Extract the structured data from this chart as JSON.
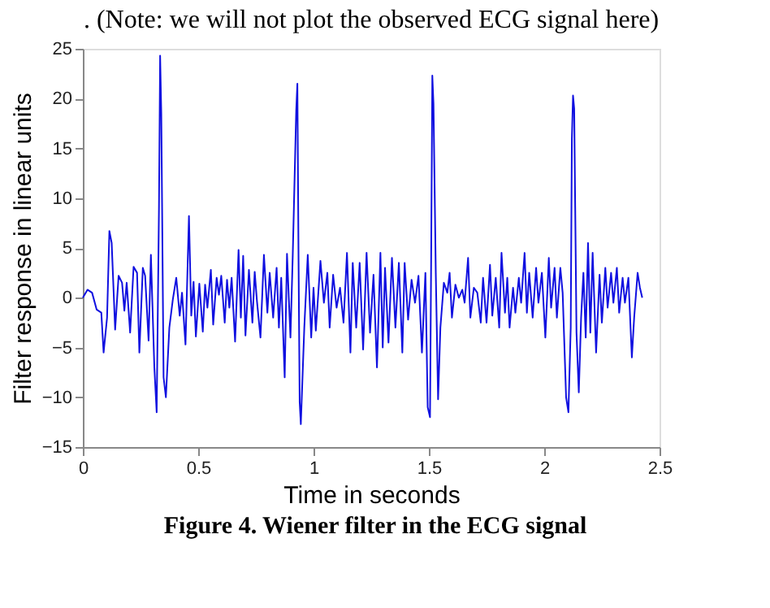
{
  "chart_data": {
    "type": "line",
    "title": ". (Note: we will not plot the observed ECG signal here)",
    "xlabel": "Time in seconds",
    "ylabel": "Filter response in linear units",
    "annotations": [
      "Figure 4.  Wiener filter in the ECG signal"
    ],
    "x": [
      0,
      0.02,
      0.04,
      0.06,
      0.08,
      0.09,
      0.105,
      0.115,
      0.125,
      0.14,
      0.155,
      0.17,
      0.18,
      0.19,
      0.205,
      0.22,
      0.235,
      0.245,
      0.26,
      0.27,
      0.285,
      0.295,
      0.31,
      0.32,
      0.33,
      0.335,
      0.34,
      0.35,
      0.36,
      0.375,
      0.39,
      0.405,
      0.42,
      0.43,
      0.445,
      0.46,
      0.47,
      0.48,
      0.49,
      0.505,
      0.52,
      0.53,
      0.54,
      0.555,
      0.565,
      0.58,
      0.59,
      0.6,
      0.615,
      0.625,
      0.635,
      0.645,
      0.66,
      0.675,
      0.685,
      0.695,
      0.705,
      0.72,
      0.735,
      0.745,
      0.755,
      0.77,
      0.785,
      0.8,
      0.81,
      0.825,
      0.84,
      0.85,
      0.86,
      0.875,
      0.885,
      0.9,
      0.91,
      0.925,
      0.93,
      0.935,
      0.94,
      0.945,
      0.96,
      0.975,
      0.99,
      1.0,
      1.01,
      1.03,
      1.045,
      1.06,
      1.07,
      1.085,
      1.1,
      1.115,
      1.13,
      1.145,
      1.16,
      1.17,
      1.185,
      1.2,
      1.215,
      1.23,
      1.245,
      1.26,
      1.275,
      1.29,
      1.3,
      1.31,
      1.325,
      1.34,
      1.355,
      1.37,
      1.385,
      1.395,
      1.41,
      1.425,
      1.44,
      1.455,
      1.47,
      1.485,
      1.495,
      1.505,
      1.51,
      1.515,
      1.52,
      1.53,
      1.54,
      1.55,
      1.565,
      1.58,
      1.59,
      1.6,
      1.615,
      1.63,
      1.645,
      1.655,
      1.67,
      1.68,
      1.695,
      1.71,
      1.725,
      1.735,
      1.75,
      1.765,
      1.775,
      1.79,
      1.805,
      1.815,
      1.83,
      1.84,
      1.85,
      1.865,
      1.875,
      1.89,
      1.9,
      1.915,
      1.925,
      1.935,
      1.95,
      1.965,
      1.975,
      1.99,
      2.005,
      2.02,
      2.03,
      2.045,
      2.055,
      2.07,
      2.08,
      2.095,
      2.105,
      2.115,
      2.12,
      2.125,
      2.13,
      2.14,
      2.15,
      2.16,
      2.17,
      2.18,
      2.19,
      2.2,
      2.21,
      2.225,
      2.24,
      2.25,
      2.265,
      2.275,
      2.29,
      2.3,
      2.315,
      2.325,
      2.34,
      2.35,
      2.365,
      2.38,
      2.39,
      2.405,
      2.415,
      2.425
    ],
    "series": [
      {
        "color": "#1010e0",
        "values": [
          0,
          0.8,
          0.5,
          -1.2,
          -1.5,
          -5.5,
          -2,
          6.7,
          5.5,
          -3.2,
          2.2,
          1.5,
          -1.3,
          1.5,
          -3.5,
          3.1,
          2.5,
          -5.5,
          3,
          2.2,
          -4.3,
          4.3,
          -7,
          -11.5,
          9,
          24.3,
          18.5,
          -8,
          -10,
          -3,
          -0.2,
          2,
          -1.8,
          0.5,
          -4.7,
          8.2,
          -1.8,
          1.6,
          -3.9,
          1.4,
          -3.4,
          1.3,
          -1,
          2.8,
          -2.7,
          2,
          0.3,
          2.2,
          -2.5,
          1.8,
          -1,
          2,
          -4.4,
          4.8,
          -2,
          4.2,
          -3.8,
          2.8,
          -2.5,
          2.6,
          -0.4,
          -4,
          4.3,
          -1.5,
          2.5,
          -2,
          3,
          -3,
          2,
          -8,
          4.4,
          -4,
          4.3,
          18.8,
          21.5,
          4,
          -10.5,
          -12.7,
          -3,
          4.3,
          -4,
          1,
          -3.3,
          3.7,
          -0.5,
          2.5,
          -3,
          2.3,
          -1,
          1,
          -2.5,
          4.5,
          -5.5,
          3.5,
          -3,
          3.5,
          -5.2,
          4.5,
          -3.5,
          2.3,
          -7,
          4.5,
          -5,
          3,
          -4.5,
          4,
          -3,
          3.5,
          -5.5,
          3.5,
          -2.2,
          1.8,
          -0.5,
          2.2,
          -5.5,
          2.5,
          -11,
          -12,
          4,
          22.3,
          19.5,
          2.5,
          -10.2,
          -3,
          1.5,
          0.5,
          2.5,
          -2,
          1.3,
          0,
          0.8,
          -0.5,
          4,
          -2,
          1,
          0.5,
          -2.5,
          2,
          -2.5,
          3.3,
          -1.8,
          2,
          -3,
          4.5,
          -1.5,
          2,
          -3,
          1,
          -1.5,
          2,
          -0.5,
          4.5,
          -1.5,
          2.5,
          -2,
          3,
          -0.5,
          2.5,
          -4,
          4,
          -1,
          3,
          -2,
          3,
          0.5,
          -10,
          -11.5,
          -3,
          16,
          20.3,
          19,
          -3.5,
          -9.5,
          -2,
          2.5,
          -4,
          5.5,
          -3.5,
          4.5,
          -5.5,
          2.3,
          -2.5,
          3,
          -1,
          2.5,
          -0.5,
          3,
          -1.5,
          2,
          -0.5,
          2,
          -6,
          -2,
          2.5,
          1,
          0
        ]
      }
    ],
    "xlim": [
      0,
      2.5
    ],
    "ylim": [
      -15,
      25
    ],
    "xticks": [
      0,
      0.5,
      1,
      1.5,
      2,
      2.5
    ],
    "yticks": [
      -15,
      -10,
      -5,
      0,
      5,
      10,
      15,
      20,
      25
    ],
    "grid": false,
    "marker": "none",
    "line_style": "solid"
  }
}
